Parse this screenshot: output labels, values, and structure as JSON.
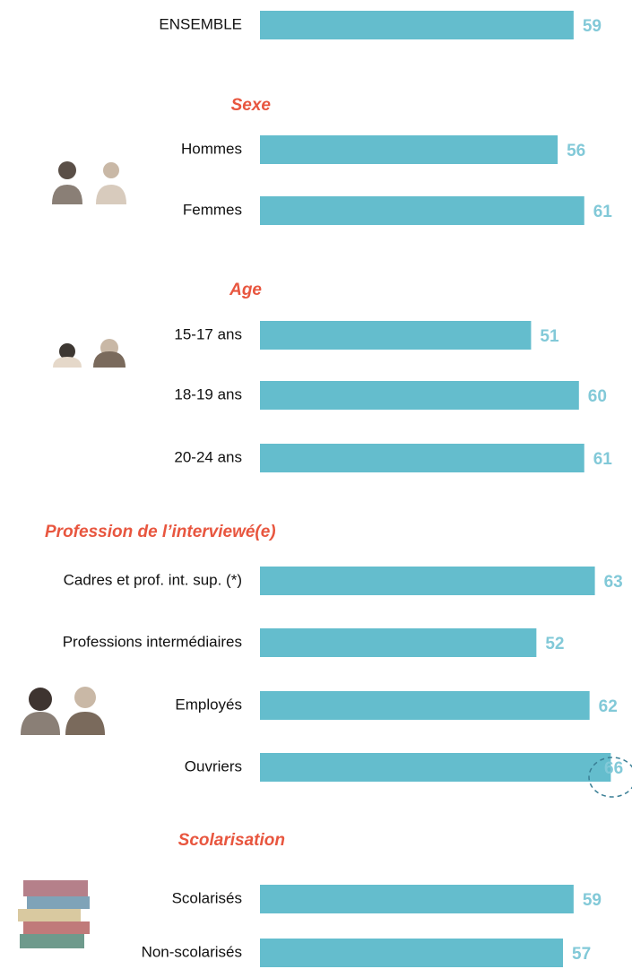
{
  "chart_data": {
    "type": "bar",
    "color": "#64bdcd",
    "label_color": "#82c9d8",
    "heading_color": "#e8563f",
    "sections": [
      {
        "categories": [
          "ENSEMBLE"
        ],
        "values": [
          59
        ]
      },
      {
        "title": "Sexe",
        "categories": [
          "Hommes",
          "Femmes"
        ],
        "values": [
          56,
          61
        ]
      },
      {
        "title": "Age",
        "categories": [
          "15-17 ans",
          "18-19 ans",
          "20-24 ans"
        ],
        "values": [
          51,
          60,
          61
        ]
      },
      {
        "title": "Profession de l’interviewé(e)",
        "categories": [
          "Cadres et prof. int. sup. (*)",
          "Professions intermédiaires",
          "Employés",
          "Ouvriers"
        ],
        "values": [
          63,
          52,
          62,
          66
        ]
      },
      {
        "title": "Scolarisation",
        "categories": [
          "Scolarisés",
          "Non-scolarisés"
        ],
        "values": [
          59,
          57
        ]
      }
    ]
  }
}
